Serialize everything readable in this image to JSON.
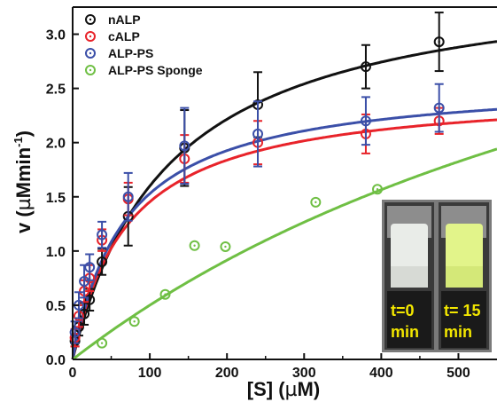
{
  "chart_data": {
    "type": "scatter",
    "xlabel": "[S] (µM)",
    "ylabel": "v (µMmin⁻¹)",
    "ylabel_parts": {
      "prefix": "v (",
      "mu": "µ",
      "unit": "Mmin",
      "sup": "-1",
      "suffix": ")"
    },
    "xlabel_parts": {
      "prefix": "[S] (",
      "mu": "µ",
      "suffix": "M)"
    },
    "xlim": [
      0,
      550
    ],
    "ylim": [
      0,
      3.25
    ],
    "x_ticks": [
      0,
      100,
      200,
      300,
      400,
      500
    ],
    "x_tick_labels": [
      "0",
      "100",
      "200",
      "300",
      "400",
      "500"
    ],
    "y_ticks": [
      0,
      0.5,
      1.0,
      1.5,
      2.0,
      2.5,
      3.0
    ],
    "y_tick_labels": [
      "0.0",
      "0.5",
      "1.0",
      "1.5",
      "2.0",
      "2.5",
      "3.0"
    ],
    "legend_position": "top-left",
    "grid": false,
    "series": [
      {
        "name": "nALP",
        "color": "#111111",
        "x": [
          3,
          8,
          15,
          22,
          38,
          72,
          145,
          240,
          380,
          475
        ],
        "y": [
          0.17,
          0.3,
          0.42,
          0.55,
          0.9,
          1.32,
          1.95,
          2.35,
          2.7,
          2.93
        ],
        "err": [
          0.05,
          0.08,
          0.1,
          0.1,
          0.12,
          0.27,
          0.35,
          0.3,
          0.2,
          0.27
        ],
        "fit": {
          "vmax": 3.6,
          "km": 125
        }
      },
      {
        "name": "cALP",
        "color": "#e8232a",
        "x": [
          3,
          8,
          15,
          22,
          38,
          72,
          145,
          240,
          380,
          475
        ],
        "y": [
          0.2,
          0.4,
          0.63,
          0.75,
          1.1,
          1.48,
          1.85,
          2.0,
          2.08,
          2.2
        ],
        "err": [
          0.08,
          0.1,
          0.1,
          0.12,
          0.1,
          0.15,
          0.22,
          0.2,
          0.18,
          0.12
        ],
        "fit": {
          "vmax": 2.5,
          "km": 72
        }
      },
      {
        "name": "ALP-PS",
        "color": "#3b4fa8",
        "x": [
          3,
          8,
          15,
          22,
          38,
          72,
          145,
          240,
          380,
          475
        ],
        "y": [
          0.25,
          0.5,
          0.72,
          0.85,
          1.15,
          1.5,
          1.97,
          2.08,
          2.2,
          2.32
        ],
        "err": [
          0.1,
          0.12,
          0.15,
          0.12,
          0.12,
          0.22,
          0.35,
          0.3,
          0.22,
          0.22
        ],
        "fit": {
          "vmax": 2.6,
          "km": 70
        }
      },
      {
        "name": "ALP-PS Sponge",
        "color": "#6fbf44",
        "x": [
          38,
          80,
          120,
          158,
          198,
          315,
          395
        ],
        "y": [
          0.15,
          0.35,
          0.6,
          1.05,
          1.04,
          1.45,
          1.57
        ],
        "err": [],
        "fit": {
          "vmax": 5.4,
          "km": 980
        }
      }
    ],
    "inset": {
      "left_label_lines": [
        "t=0",
        "min"
      ],
      "right_label_lines": [
        "t= 15",
        "min"
      ]
    }
  }
}
